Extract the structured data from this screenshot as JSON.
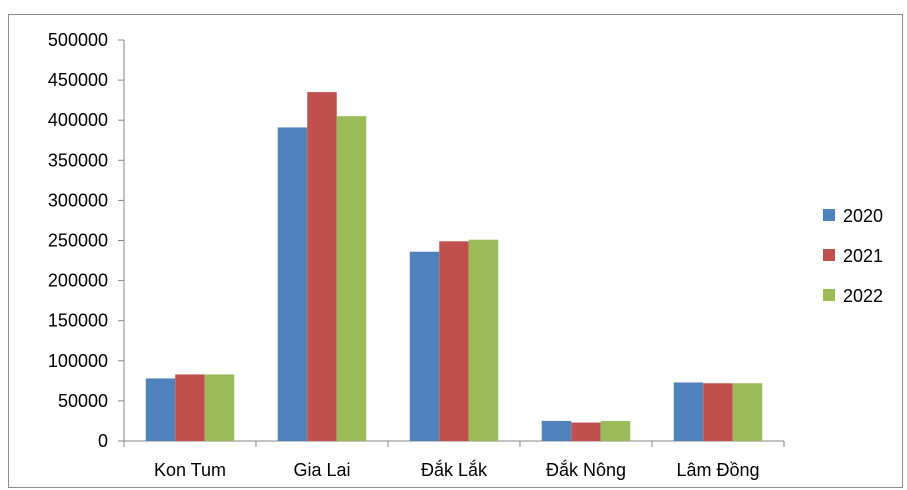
{
  "chart_data": {
    "type": "bar",
    "title": "",
    "xlabel": "",
    "ylabel": "",
    "categories": [
      "Kon Tum",
      "Gia Lai",
      "Đắk Lắk",
      "Đắk Nông",
      "Lâm Đồng"
    ],
    "ylim": [
      0,
      500000
    ],
    "yticks": [
      0,
      50000,
      100000,
      150000,
      200000,
      250000,
      300000,
      350000,
      400000,
      450000,
      500000
    ],
    "grid": false,
    "legend_position": "right",
    "series": [
      {
        "name": "2020",
        "color": "#4f81bd",
        "values": [
          78000,
          391000,
          236000,
          25000,
          73000
        ]
      },
      {
        "name": "2021",
        "color": "#c0504d",
        "values": [
          83000,
          435000,
          249000,
          23000,
          72000
        ]
      },
      {
        "name": "2022",
        "color": "#9bbb59",
        "values": [
          83000,
          405000,
          251000,
          25000,
          72000
        ]
      }
    ]
  }
}
